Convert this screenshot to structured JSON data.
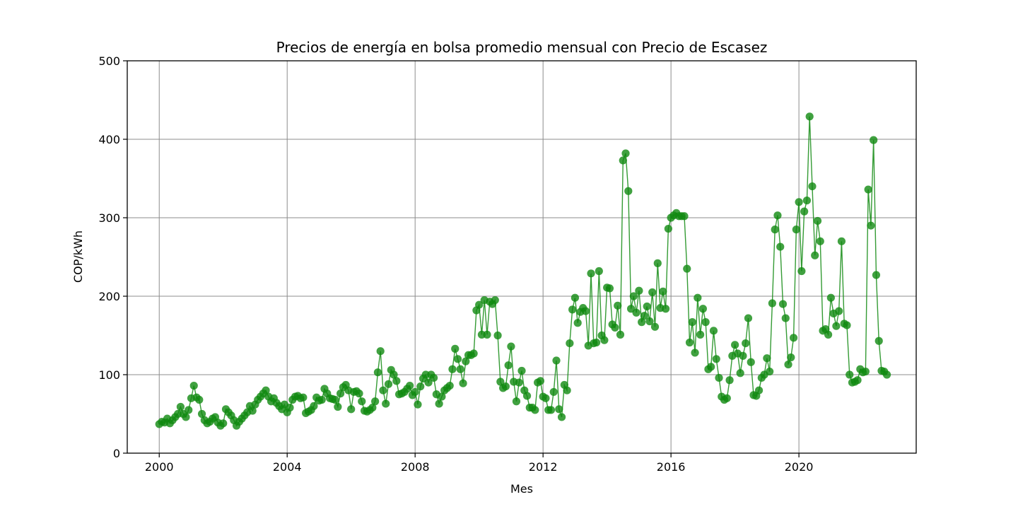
{
  "chart_data": {
    "type": "line",
    "title": "Precios de energía en bolsa promedio mensual con Precio de Escasez",
    "xlabel": "Mes",
    "ylabel": "COP/kWh",
    "x_ticks": [
      "2000",
      "2004",
      "2008",
      "2012",
      "2016",
      "2020"
    ],
    "y_ticks": [
      "0",
      "100",
      "200",
      "300",
      "400",
      "500"
    ],
    "xlim": [
      "1999-01",
      "2023-09"
    ],
    "ylim": [
      0,
      500
    ],
    "grid": true,
    "series": [
      {
        "color": "#108a10",
        "marker": "circle",
        "x_start": "2000-01",
        "frequency": "monthly",
        "values": [
          37,
          40,
          39,
          44,
          38,
          42,
          46,
          50,
          59,
          50,
          46,
          55,
          70,
          86,
          71,
          68,
          50,
          42,
          38,
          40,
          44,
          46,
          39,
          35,
          38,
          56,
          52,
          48,
          42,
          35,
          40,
          44,
          48,
          52,
          60,
          54,
          62,
          68,
          72,
          76,
          80,
          72,
          66,
          70,
          64,
          60,
          56,
          62,
          52,
          58,
          68,
          72,
          73,
          70,
          71,
          51,
          53,
          55,
          60,
          71,
          67,
          68,
          82,
          76,
          70,
          69,
          68,
          59,
          76,
          84,
          87,
          80,
          56,
          78,
          79,
          76,
          66,
          54,
          53,
          55,
          58,
          66,
          103,
          130,
          80,
          63,
          88,
          106,
          100,
          92,
          75,
          76,
          78,
          82,
          86,
          74,
          78,
          62,
          85,
          95,
          100,
          90,
          100,
          96,
          75,
          63,
          72,
          80,
          83,
          86,
          107,
          133,
          120,
          107,
          89,
          117,
          125,
          125,
          127,
          182,
          189,
          151,
          195,
          151,
          193,
          190,
          195,
          150,
          91,
          83,
          85,
          112,
          136,
          91,
          66,
          90,
          105,
          80,
          73,
          58,
          58,
          55,
          90,
          92,
          72,
          70,
          55,
          55,
          78,
          118,
          56,
          46,
          87,
          80,
          140,
          183,
          198,
          166,
          180,
          185,
          181,
          137,
          229,
          140,
          141,
          232,
          150,
          144,
          211,
          210,
          164,
          160,
          188,
          151,
          373,
          382,
          334,
          184,
          200,
          179,
          207,
          167,
          175,
          187,
          168,
          205,
          161,
          242,
          185,
          206,
          184,
          286,
          300,
          303,
          306,
          302,
          302,
          302,
          235,
          141,
          167,
          128,
          198,
          151,
          184,
          167,
          107,
          110,
          156,
          120,
          96,
          72,
          68,
          70,
          93,
          124,
          138,
          127,
          102,
          124,
          140,
          172,
          116,
          74,
          73,
          80,
          96,
          100,
          121,
          104,
          191,
          285,
          303,
          263,
          190,
          172,
          113,
          122,
          147,
          285,
          320,
          232,
          308,
          322,
          429,
          340,
          252,
          296,
          270,
          156,
          158,
          151,
          198,
          178,
          162,
          181,
          270,
          165,
          163,
          100,
          90,
          91,
          93,
          107,
          103,
          104,
          336,
          290,
          399,
          227,
          143,
          105,
          104,
          100
        ]
      }
    ]
  }
}
